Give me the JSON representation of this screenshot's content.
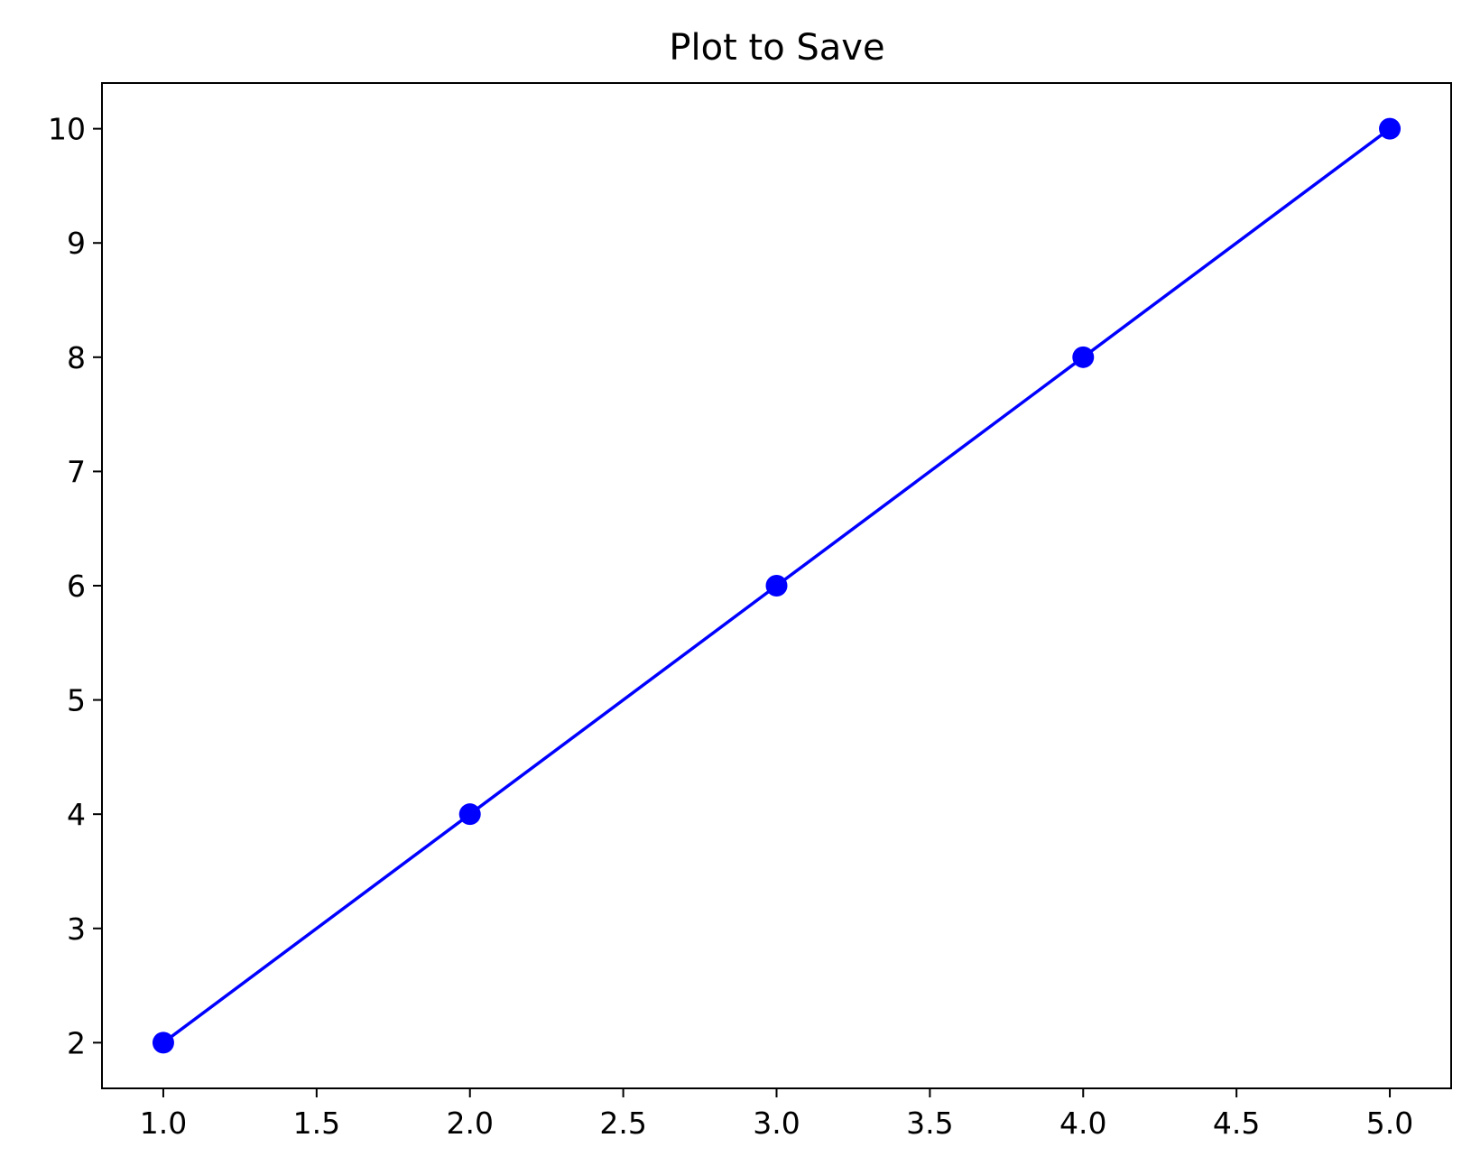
{
  "chart_data": {
    "type": "line",
    "title": "Plot to Save",
    "xlabel": "",
    "ylabel": "",
    "x": [
      1,
      2,
      3,
      4,
      5
    ],
    "series": [
      {
        "values": [
          2,
          4,
          6,
          8,
          10
        ],
        "color": "#0000ff",
        "marker": "circle"
      }
    ],
    "xlim": [
      0.8,
      5.2
    ],
    "ylim": [
      1.6,
      10.4
    ],
    "x_ticks": [
      "1.0",
      "1.5",
      "2.0",
      "2.5",
      "3.0",
      "3.5",
      "4.0",
      "4.5",
      "5.0"
    ],
    "y_ticks": [
      "2",
      "3",
      "4",
      "5",
      "6",
      "7",
      "8",
      "9",
      "10"
    ],
    "grid": false,
    "legend": "none"
  }
}
